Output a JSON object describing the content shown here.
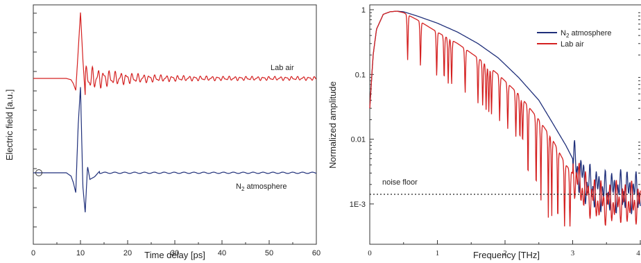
{
  "chart_data": [
    {
      "type": "line",
      "xlabel": "Time delay [ps]",
      "ylabel": "Electric field [a.u.]",
      "xlim": [
        0,
        60
      ],
      "x_ticks": [
        "0",
        "10",
        "20",
        "30",
        "40",
        "50",
        "60"
      ],
      "y_ticks_labeled": false,
      "grid": false,
      "series": [
        {
          "name": "Lab air",
          "color": "#d42020",
          "offset": 1.0,
          "x": [
            0,
            7,
            8,
            8.5,
            9,
            9.5,
            10,
            10.5,
            11,
            11.5,
            12,
            12.5,
            13,
            13.5,
            14,
            15,
            16,
            18,
            20,
            25,
            30,
            40,
            50,
            60
          ],
          "values": [
            0,
            0,
            -0.02,
            -0.08,
            -0.18,
            0.4,
            1.0,
            0.3,
            -0.25,
            0.2,
            -0.18,
            0.14,
            -0.12,
            0.1,
            -0.09,
            -0.07,
            0.06,
            0.05,
            -0.04,
            0.03,
            -0.03,
            0.02,
            -0.02,
            0
          ]
        },
        {
          "name": "N2 atmosphere",
          "color": "#1f2f7a",
          "offset": 0.0,
          "x": [
            0,
            7,
            8,
            8.5,
            9,
            9.5,
            10,
            10.5,
            11,
            11.5,
            12,
            13,
            14,
            20,
            30,
            40,
            50,
            60
          ],
          "values": [
            0,
            0,
            -0.05,
            -0.15,
            -0.3,
            0.7,
            1.3,
            -0.2,
            -0.6,
            0.1,
            -0.1,
            -0.06,
            0.02,
            0.01,
            0,
            0,
            0,
            0
          ]
        }
      ],
      "annotations": [
        "Lab air",
        "N",
        "2",
        " atmosphere"
      ]
    },
    {
      "type": "line",
      "xlabel": "Frequency [THz]",
      "ylabel": "Normalized amplitude",
      "xlim": [
        0,
        4
      ],
      "ylim": [
        0.0005,
        1
      ],
      "yscale": "log",
      "x_ticks": [
        "0",
        "1",
        "2",
        "3",
        "4"
      ],
      "y_ticks": [
        "1",
        "0.1",
        "0.01",
        "1E-3"
      ],
      "grid": false,
      "legend_position": "top-right",
      "legend": [
        "N",
        "2",
        " atmosphere",
        "Lab air"
      ],
      "series": [
        {
          "name": "N2 atmosphere",
          "color": "#1f2f7a",
          "x": [
            0,
            0.05,
            0.1,
            0.2,
            0.3,
            0.4,
            0.5,
            0.7,
            1.0,
            1.3,
            1.6,
            1.9,
            2.2,
            2.5,
            2.7,
            2.9,
            3.0,
            3.1,
            3.2,
            3.3,
            3.5,
            3.7,
            4.0
          ],
          "values": [
            0.03,
            0.2,
            0.5,
            0.85,
            0.93,
            0.95,
            0.93,
            0.8,
            0.62,
            0.45,
            0.3,
            0.18,
            0.09,
            0.04,
            0.018,
            0.008,
            0.005,
            0.003,
            0.002,
            0.0018,
            0.0015,
            0.0016,
            0.0015
          ]
        },
        {
          "name": "Lab air",
          "color": "#d42020",
          "x": [
            0,
            0.05,
            0.1,
            0.2,
            0.3,
            0.4,
            0.5,
            0.7,
            1.0,
            1.3,
            1.6,
            1.9,
            2.2,
            2.5,
            2.7,
            2.9,
            3.0,
            3.1,
            3.2,
            3.3,
            3.5,
            3.7,
            4.0
          ],
          "values": [
            0.03,
            0.2,
            0.5,
            0.85,
            0.93,
            0.95,
            0.9,
            0.7,
            0.45,
            0.3,
            0.18,
            0.1,
            0.05,
            0.02,
            0.01,
            0.004,
            0.003,
            0.002,
            0.0015,
            0.0012,
            0.001,
            0.0011,
            0.001
          ],
          "absorption_lines_THz": [
            0.56,
            0.75,
            0.99,
            1.1,
            1.16,
            1.21,
            1.41,
            1.6,
            1.67,
            1.72,
            1.76,
            1.8,
            1.92,
            2.04,
            2.16,
            2.22,
            2.26,
            2.34,
            2.46,
            2.53,
            2.64,
            2.69,
            2.78,
            2.88,
            2.96
          ]
        }
      ],
      "annotations": [
        "noise floor"
      ],
      "noise_floor": 0.0015
    }
  ]
}
